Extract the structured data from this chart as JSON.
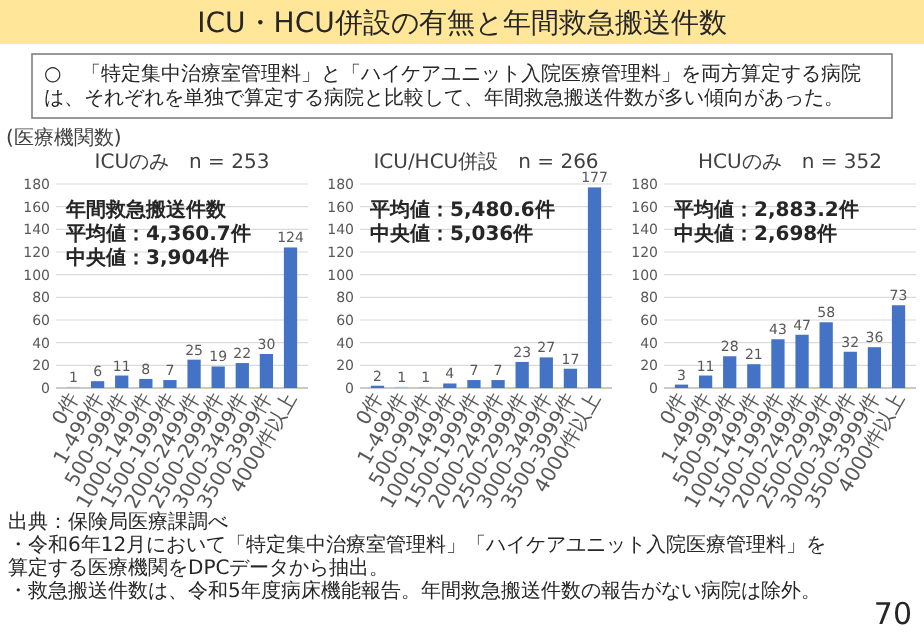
{
  "chart_data": [
    {
      "type": "bar",
      "title": "ICUのみ　n = 253",
      "ylabel": "(医療機関数)",
      "categories": [
        "0件",
        "1-499件",
        "500-999件",
        "1000-1499件",
        "1500-1999件",
        "2000-2499件",
        "2500-2999件",
        "3000-3499件",
        "3500-3999件",
        "4000件以上"
      ],
      "values": [
        1,
        6,
        11,
        8,
        7,
        25,
        19,
        22,
        30,
        124
      ],
      "colors": [
        "#9dc3e6",
        "#4472c4",
        "#4472c4",
        "#4472c4",
        "#4472c4",
        "#4472c4",
        "#4472c4",
        "#4472c4",
        "#4472c4",
        "#4472c4"
      ],
      "ylim": [
        0,
        180
      ],
      "yticks": [
        0,
        20,
        40,
        60,
        80,
        100,
        120,
        140,
        160,
        180
      ],
      "grid": "y",
      "data_labels": true,
      "annotations": [
        "ICU・HCU併設の有無と年間救急搬送件数",
        "○　「特定集中治療室管理料」と「ハイケアユニット入院医療管理料」を両方算定する病院は、それぞれを単独で算定する病院と比較して、年間救急搬送件数が多い傾向があった。",
        "出典：保険局医療課調べ",
        "・令和6年12月において「特定集中治療室管理料」「ハイケアユニット入院医療管理料」を算定する医療機関をDPCデータから抽出。",
        "・救急搬送件数は、令和5年度病床機能報告。年間救急搬送件数の報告がない病院は除外。",
        "70",
        "年間救急搬送件数",
        "平均値：4,360.7件",
        "中央値：3,904件"
      ]
    },
    {
      "type": "bar",
      "title": "ICU/HCU併設　n = 266",
      "categories": [
        "0件",
        "1-499件",
        "500-999件",
        "1000-1499件",
        "1500-1999件",
        "2000-2499件",
        "2500-2999件",
        "3000-3499件",
        "3500-3999件",
        "4000件以上"
      ],
      "values": [
        2,
        1,
        1,
        4,
        7,
        7,
        23,
        27,
        17,
        177
      ],
      "colors": [
        "#4472c4",
        "#9dc3e6",
        "#9dc3e6",
        "#4472c4",
        "#4472c4",
        "#4472c4",
        "#4472c4",
        "#4472c4",
        "#4472c4",
        "#4472c4"
      ],
      "ylim": [
        0,
        180
      ],
      "yticks": [
        0,
        20,
        40,
        60,
        80,
        100,
        120,
        140,
        160,
        180
      ],
      "grid": "y",
      "data_labels": true,
      "annotations": [
        "平均値：5,480.6件",
        "中央値：5,036件"
      ]
    },
    {
      "type": "bar",
      "title": "HCUのみ　n = 352",
      "categories": [
        "0件",
        "1-499件",
        "500-999件",
        "1000-1499件",
        "1500-1999件",
        "2000-2499件",
        "2500-2999件",
        "3000-3499件",
        "3500-3999件",
        "4000件以上"
      ],
      "values": [
        3,
        11,
        28,
        21,
        43,
        47,
        58,
        32,
        36,
        73
      ],
      "colors": [
        "#4472c4",
        "#4472c4",
        "#4472c4",
        "#4472c4",
        "#4472c4",
        "#4472c4",
        "#4472c4",
        "#4472c4",
        "#4472c4",
        "#4472c4"
      ],
      "ylim": [
        0,
        180
      ],
      "yticks": [
        0,
        20,
        40,
        60,
        80,
        100,
        120,
        140,
        160,
        180
      ],
      "grid": "y",
      "data_labels": true,
      "annotations": [
        "平均値：2,883.2件",
        "中央値：2,698件"
      ]
    }
  ]
}
